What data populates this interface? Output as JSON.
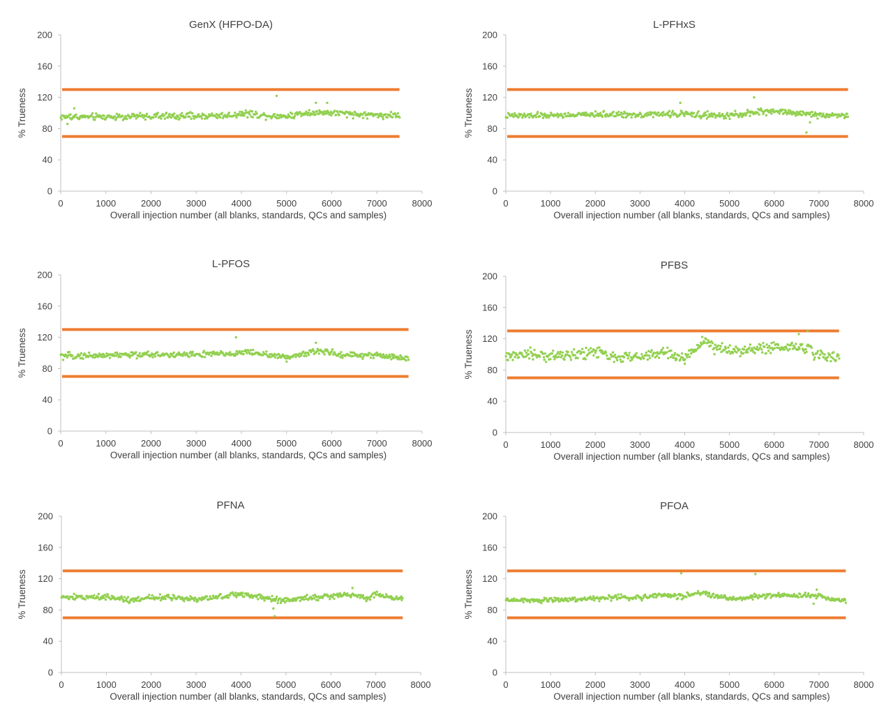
{
  "colors": {
    "points": "#92d050",
    "limit_lines": "#ed7d31",
    "axis": "#bfbfbf",
    "text": "#404040"
  },
  "chart_data": [
    {
      "type": "scatter",
      "title": "GenX (HFPO-DA)",
      "xlabel": "Overall injection number (all blanks, standards, QCs and samples)",
      "ylabel": "% Trueness",
      "xlim": [
        0,
        8000
      ],
      "ylim": [
        0,
        200
      ],
      "xticks": [
        "0",
        "1000",
        "2000",
        "3000",
        "4000",
        "5000",
        "6000",
        "7000",
        "8000"
      ],
      "yticks": [
        "0",
        "40",
        "80",
        "120",
        "160",
        "200"
      ],
      "grid": false,
      "x_extent": [
        0,
        7500
      ],
      "limits": [
        70,
        130
      ],
      "series": [
        {
          "baseline": [
            [
              0,
              95
            ],
            [
              1000,
              95
            ],
            [
              2000,
              96
            ],
            [
              3000,
              96
            ],
            [
              3800,
              97
            ],
            [
              4000,
              100
            ],
            [
              4500,
              97
            ],
            [
              5000,
              96
            ],
            [
              5500,
              101
            ],
            [
              6000,
              100
            ],
            [
              6500,
              98
            ],
            [
              7500,
              97
            ]
          ],
          "spread": 3.5,
          "outliers": [
            [
              4780,
              122
            ],
            [
              5650,
              113
            ],
            [
              5900,
              113
            ],
            [
              150,
              86
            ],
            [
              300,
              106
            ]
          ]
        }
      ]
    },
    {
      "type": "scatter",
      "title": "L-PFHxS",
      "xlabel": "Overall injection number (all blanks, standards, QCs and samples)",
      "ylabel": "% Trueness",
      "xlim": [
        0,
        8000
      ],
      "ylim": [
        0,
        200
      ],
      "xticks": [
        "0",
        "1000",
        "2000",
        "3000",
        "4000",
        "5000",
        "6000",
        "7000",
        "8000"
      ],
      "yticks": [
        "0",
        "40",
        "80",
        "120",
        "160",
        "200"
      ],
      "grid": false,
      "x_extent": [
        0,
        7650
      ],
      "limits": [
        70,
        130
      ],
      "series": [
        {
          "baseline": [
            [
              0,
              96
            ],
            [
              1000,
              97
            ],
            [
              2000,
              98
            ],
            [
              3000,
              98
            ],
            [
              4000,
              99
            ],
            [
              4800,
              96
            ],
            [
              5500,
              100
            ],
            [
              6000,
              103
            ],
            [
              6600,
              99
            ],
            [
              7000,
              98
            ],
            [
              7650,
              97
            ]
          ],
          "spread": 3.0,
          "outliers": [
            [
              3900,
              113
            ],
            [
              5550,
              120
            ],
            [
              6720,
              75
            ],
            [
              6800,
              88
            ]
          ]
        }
      ]
    },
    {
      "type": "scatter",
      "title": "L-PFOS",
      "xlabel": "Overall injection number (all blanks, standards, QCs and samples)",
      "ylabel": "% Trueness",
      "xlim": [
        0,
        8000
      ],
      "ylim": [
        0,
        200
      ],
      "xticks": [
        "0",
        "1000",
        "2000",
        "3000",
        "4000",
        "5000",
        "6000",
        "7000",
        "8000"
      ],
      "yticks": [
        "0",
        "40",
        "80",
        "120",
        "160",
        "200"
      ],
      "grid": false,
      "x_extent": [
        0,
        7700
      ],
      "limits": [
        70,
        130
      ],
      "series": [
        {
          "baseline": [
            [
              0,
              96
            ],
            [
              1000,
              97
            ],
            [
              2000,
              98
            ],
            [
              3000,
              98
            ],
            [
              3800,
              99
            ],
            [
              4200,
              101
            ],
            [
              4700,
              97
            ],
            [
              5000,
              94
            ],
            [
              5400,
              100
            ],
            [
              5700,
              103
            ],
            [
              6200,
              98
            ],
            [
              7000,
              97
            ],
            [
              7700,
              93
            ]
          ],
          "spread": 3.2,
          "outliers": [
            [
              3880,
              120
            ],
            [
              5650,
              113
            ],
            [
              5000,
              89
            ]
          ]
        }
      ]
    },
    {
      "type": "scatter",
      "title": "PFBS",
      "xlabel": "Overall injection number (all blanks, standards, QCs and samples)",
      "ylabel": "% Trueness",
      "xlim": [
        0,
        8000
      ],
      "ylim": [
        0,
        200
      ],
      "xticks": [
        "0",
        "1000",
        "2000",
        "3000",
        "4000",
        "5000",
        "6000",
        "7000",
        "8000"
      ],
      "yticks": [
        "0",
        "40",
        "80",
        "120",
        "160",
        "200"
      ],
      "grid": false,
      "x_extent": [
        0,
        7450
      ],
      "limits": [
        70,
        130
      ],
      "series": [
        {
          "baseline": [
            [
              0,
              96
            ],
            [
              500,
              100
            ],
            [
              1000,
              98
            ],
            [
              1800,
              101
            ],
            [
              2200,
              105
            ],
            [
              2300,
              96
            ],
            [
              3000,
              96
            ],
            [
              3600,
              103
            ],
            [
              3900,
              93
            ],
            [
              4100,
              100
            ],
            [
              4400,
              118
            ],
            [
              4700,
              108
            ],
            [
              5000,
              104
            ],
            [
              5500,
              107
            ],
            [
              6000,
              108
            ],
            [
              6500,
              110
            ],
            [
              6800,
              108
            ],
            [
              6900,
              98
            ],
            [
              7450,
              97
            ]
          ],
          "spread": 5.5,
          "outliers": [
            [
              4000,
              88
            ],
            [
              6550,
              126
            ],
            [
              6750,
              130
            ],
            [
              3800,
              95
            ]
          ]
        }
      ]
    },
    {
      "type": "scatter",
      "title": "PFNA",
      "xlabel": "Overall injection number (all blanks, standards, QCs and samples)",
      "ylabel": "% Trueness",
      "xlim": [
        0,
        8000
      ],
      "ylim": [
        0,
        200
      ],
      "xticks": [
        "0",
        "1000",
        "2000",
        "3000",
        "4000",
        "5000",
        "6000",
        "7000",
        "8000"
      ],
      "yticks": [
        "0",
        "40",
        "80",
        "120",
        "160",
        "200"
      ],
      "grid": false,
      "x_extent": [
        0,
        7600
      ],
      "limits": [
        70,
        130
      ],
      "series": [
        {
          "baseline": [
            [
              0,
              96
            ],
            [
              1000,
              97
            ],
            [
              1500,
              93
            ],
            [
              2000,
              96
            ],
            [
              2600,
              96
            ],
            [
              3000,
              94
            ],
            [
              3500,
              96
            ],
            [
              4000,
              101
            ],
            [
              4500,
              95
            ],
            [
              5000,
              92
            ],
            [
              5500,
              96
            ],
            [
              6000,
              98
            ],
            [
              6500,
              100
            ],
            [
              6800,
              93
            ],
            [
              7000,
              101
            ],
            [
              7400,
              94
            ],
            [
              7600,
              96
            ]
          ],
          "spread": 3.0,
          "outliers": [
            [
              4750,
              72
            ],
            [
              4720,
              82
            ],
            [
              6480,
              108
            ]
          ]
        }
      ]
    },
    {
      "type": "scatter",
      "title": "PFOA",
      "xlabel": "Overall injection number (all blanks, standards, QCs and samples)",
      "ylabel": "% Trueness",
      "xlim": [
        0,
        8000
      ],
      "ylim": [
        0,
        200
      ],
      "xticks": [
        "0",
        "1000",
        "2000",
        "3000",
        "4000",
        "5000",
        "6000",
        "7000",
        "8000"
      ],
      "yticks": [
        "0",
        "40",
        "80",
        "120",
        "160",
        "200"
      ],
      "grid": false,
      "x_extent": [
        0,
        7600
      ],
      "limits": [
        70,
        130
      ],
      "series": [
        {
          "baseline": [
            [
              0,
              93
            ],
            [
              1000,
              93
            ],
            [
              1500,
              93
            ],
            [
              2000,
              95
            ],
            [
              2500,
              96
            ],
            [
              3000,
              96
            ],
            [
              3500,
              99
            ],
            [
              4000,
              97
            ],
            [
              4300,
              102
            ],
            [
              4800,
              96
            ],
            [
              5200,
              94
            ],
            [
              5600,
              98
            ],
            [
              6000,
              99
            ],
            [
              6500,
              98
            ],
            [
              7000,
              99
            ],
            [
              7300,
              92
            ],
            [
              7600,
              93
            ]
          ],
          "spread": 2.8,
          "outliers": [
            [
              3920,
              127
            ],
            [
              5580,
              126
            ],
            [
              6880,
              88
            ],
            [
              6950,
              106
            ]
          ]
        }
      ]
    }
  ]
}
